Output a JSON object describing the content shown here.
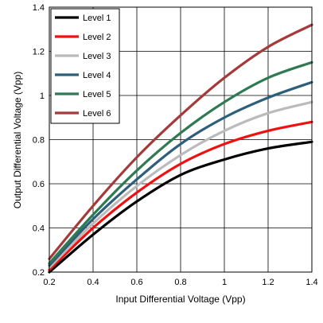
{
  "chart_data": {
    "type": "line",
    "title": "",
    "xlabel": "Input Differential Voltage (Vpp)",
    "ylabel": "Output Differential Voltage (Vpp)",
    "xlim": [
      0.2,
      1.4
    ],
    "ylim": [
      0.2,
      1.4
    ],
    "x_ticks": [
      0.2,
      0.4,
      0.6,
      0.8,
      1.0,
      1.2,
      1.4
    ],
    "x_tick_labels": [
      "0.2",
      "0.4",
      "0.6",
      "0.8",
      "1",
      "1.2",
      "1.4"
    ],
    "y_ticks": [
      0.2,
      0.4,
      0.6,
      0.8,
      1.0,
      1.2,
      1.4
    ],
    "y_tick_labels": [
      "0.2",
      "0.4",
      "0.6",
      "0.8",
      "1",
      "1.2",
      "1.4"
    ],
    "grid": true,
    "legend_position": "top-left",
    "x": [
      0.2,
      0.4,
      0.6,
      0.8,
      1.0,
      1.2,
      1.4
    ],
    "series": [
      {
        "name": "Level 1",
        "color": "#000000",
        "values": [
          0.2,
          0.37,
          0.52,
          0.64,
          0.71,
          0.76,
          0.79
        ]
      },
      {
        "name": "Level 2",
        "color": "#ee1111",
        "values": [
          0.21,
          0.4,
          0.56,
          0.69,
          0.78,
          0.84,
          0.88
        ]
      },
      {
        "name": "Level 3",
        "color": "#bbbbbb",
        "values": [
          0.22,
          0.42,
          0.59,
          0.73,
          0.84,
          0.92,
          0.97
        ]
      },
      {
        "name": "Level 4",
        "color": "#2e5f7a",
        "values": [
          0.23,
          0.44,
          0.62,
          0.78,
          0.9,
          0.99,
          1.06
        ]
      },
      {
        "name": "Level 5",
        "color": "#2f7a52",
        "values": [
          0.24,
          0.46,
          0.66,
          0.83,
          0.97,
          1.08,
          1.15
        ]
      },
      {
        "name": "Level 6",
        "color": "#a43a3a",
        "values": [
          0.26,
          0.5,
          0.72,
          0.91,
          1.08,
          1.22,
          1.32
        ]
      }
    ]
  }
}
